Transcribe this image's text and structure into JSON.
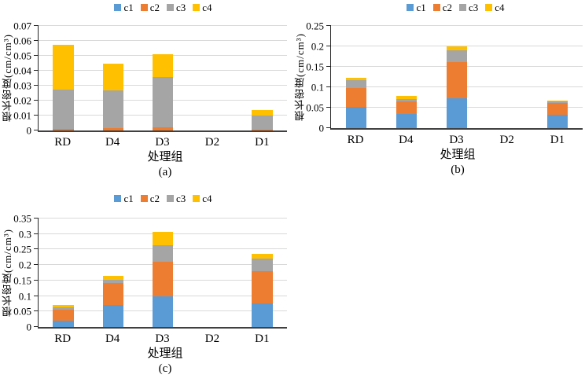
{
  "figure": {
    "y_axis_label": "根长密度(cm/cm³)",
    "x_axis_label": "处理组",
    "colors": {
      "c1": "#5B9BD5",
      "c2": "#ED7D31",
      "c3": "#A5A5A5",
      "c4": "#FFC000",
      "gridline": "#D9D9D9",
      "axis": "#262626"
    }
  },
  "chart_data": [
    {
      "id": "a",
      "type": "bar",
      "stacked": true,
      "title": "(a)",
      "xlabel": "处理组",
      "ylabel": "根长密度(cm/cm³)",
      "ylim": [
        0,
        0.07
      ],
      "ytick_labels": [
        "0",
        "0.01",
        "0.02",
        "0.03",
        "0.04",
        "0.05",
        "0.06",
        "0.07"
      ],
      "categories": [
        "RD",
        "D4",
        "D3",
        "D2",
        "D1"
      ],
      "legend": [
        "c1",
        "c2",
        "c3",
        "c4"
      ],
      "legend_position": "top",
      "grid": true,
      "series": [
        {
          "name": "c1",
          "color": "#5B9BD5",
          "values": [
            0,
            0,
            0,
            0,
            0
          ]
        },
        {
          "name": "c2",
          "color": "#ED7D31",
          "values": [
            0.001,
            0.0015,
            0.002,
            0,
            0.0005
          ]
        },
        {
          "name": "c3",
          "color": "#A5A5A5",
          "values": [
            0.0265,
            0.0255,
            0.034,
            0,
            0.0095
          ]
        },
        {
          "name": "c4",
          "color": "#FFC000",
          "values": [
            0.03,
            0.0175,
            0.015,
            0,
            0.0035
          ]
        }
      ]
    },
    {
      "id": "b",
      "type": "bar",
      "stacked": true,
      "title": "(b)",
      "xlabel": "处理组",
      "ylabel": "根长密度(cm/cm³)",
      "ylim": [
        0,
        0.25
      ],
      "ytick_labels": [
        "0",
        "0.05",
        "0.1",
        "0.15",
        "0.2",
        "0.25"
      ],
      "categories": [
        "RD",
        "D4",
        "D3",
        "D2",
        "D1"
      ],
      "legend": [
        "c1",
        "c2",
        "c3",
        "c4"
      ],
      "legend_position": "top",
      "grid": true,
      "series": [
        {
          "name": "c1",
          "color": "#5B9BD5",
          "values": [
            0.051,
            0.035,
            0.074,
            0,
            0.033
          ]
        },
        {
          "name": "c2",
          "color": "#ED7D31",
          "values": [
            0.047,
            0.031,
            0.088,
            0,
            0.029
          ]
        },
        {
          "name": "c3",
          "color": "#A5A5A5",
          "values": [
            0.019,
            0.005,
            0.028,
            0,
            0.003
          ]
        },
        {
          "name": "c4",
          "color": "#FFC000",
          "values": [
            0.006,
            0.007,
            0.011,
            0,
            0.003
          ]
        }
      ]
    },
    {
      "id": "c",
      "type": "bar",
      "stacked": true,
      "title": "(c)",
      "xlabel": "处理组",
      "ylabel": "根长密度(cm/cm³)",
      "ylim": [
        0,
        0.35
      ],
      "ytick_labels": [
        "0",
        "0.05",
        "0.1",
        "0.15",
        "0.2",
        "0.25",
        "0.3",
        "0.35"
      ],
      "categories": [
        "RD",
        "D4",
        "D3",
        "D2",
        "D1"
      ],
      "legend": [
        "c1",
        "c2",
        "c3",
        "c4"
      ],
      "legend_position": "top",
      "grid": true,
      "series": [
        {
          "name": "c1",
          "color": "#5B9BD5",
          "values": [
            0.02,
            0.07,
            0.098,
            0,
            0.076
          ]
        },
        {
          "name": "c2",
          "color": "#ED7D31",
          "values": [
            0.037,
            0.072,
            0.112,
            0,
            0.104
          ]
        },
        {
          "name": "c3",
          "color": "#A5A5A5",
          "values": [
            0.007,
            0.011,
            0.054,
            0,
            0.041
          ]
        },
        {
          "name": "c4",
          "color": "#FFC000",
          "values": [
            0.008,
            0.011,
            0.042,
            0,
            0.014
          ]
        }
      ]
    }
  ]
}
